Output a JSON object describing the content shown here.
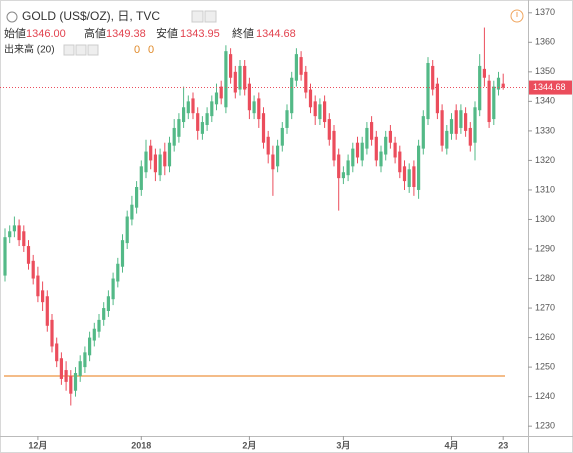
{
  "chart_data": {
    "type": "candlestick",
    "title": "GOLD (US$/OZ), 日, TVC",
    "header_labels": [
      "始値",
      "高値",
      "安値",
      "終値"
    ],
    "header_values": [
      1346,
      1349.38,
      1343.95,
      1344.68
    ],
    "header_value_labels": [
      "1346.00",
      "1349.38",
      "1343.95",
      "1344.68"
    ],
    "volume_label": "出来高 (20)",
    "volume_values": [
      0,
      0
    ],
    "categories": [
      null,
      null,
      null,
      null,
      null,
      null,
      null,
      "12月",
      null,
      null,
      null,
      null,
      null,
      null,
      null,
      null,
      null,
      null,
      null,
      null,
      null,
      null,
      null,
      null,
      null,
      null,
      null,
      null,
      null,
      "2018",
      null,
      null,
      null,
      null,
      null,
      null,
      null,
      null,
      null,
      null,
      null,
      null,
      null,
      null,
      null,
      null,
      null,
      null,
      null,
      null,
      null,
      null,
      "2月",
      null,
      null,
      null,
      null,
      null,
      null,
      null,
      null,
      null,
      null,
      null,
      null,
      null,
      null,
      null,
      null,
      null,
      null,
      null,
      "3月",
      null,
      null,
      null,
      null,
      null,
      null,
      null,
      null,
      null,
      null,
      null,
      null,
      null,
      null,
      null,
      null,
      null,
      null,
      null,
      null,
      null,
      null,
      "4月",
      null,
      null,
      null,
      null,
      null,
      null,
      null,
      null,
      null,
      null,
      "23"
    ],
    "open": [
      1281,
      1294,
      1296,
      1298,
      1296,
      1291,
      1286,
      1281,
      1276,
      1274,
      1266,
      1258,
      1253,
      1249,
      1247,
      1242,
      1247,
      1250,
      1254,
      1259,
      1262,
      1266,
      1269,
      1273,
      1279,
      1284,
      1292,
      1300,
      1304,
      1310,
      1316,
      1325,
      1322,
      1315,
      1323,
      1318,
      1325,
      1328,
      1333,
      1336,
      1341,
      1336,
      1329,
      1332,
      1335,
      1339,
      1345,
      1338,
      1356,
      1350,
      1344,
      1352,
      1346,
      1336,
      1341,
      1336,
      1328,
      1322,
      1318,
      1325,
      1331,
      1336,
      1347,
      1355,
      1350,
      1344,
      1340,
      1334,
      1340,
      1334,
      1330,
      1322,
      1314,
      1315,
      1318,
      1326,
      1320,
      1324,
      1333,
      1328,
      1318,
      1322,
      1330,
      1326,
      1323,
      1318,
      1311,
      1318,
      1310,
      1324,
      1334,
      1352,
      1346,
      1337,
      1324,
      1329,
      1337,
      1331,
      1336,
      1331,
      1326,
      1337,
      1351,
      1347,
      1334,
      1344,
      1346
    ],
    "high": [
      1297,
      1298,
      1301,
      1300,
      1298,
      1293,
      1288,
      1284,
      1279,
      1276,
      1268,
      1260,
      1255,
      1252,
      1249,
      1250,
      1254,
      1257,
      1262,
      1265,
      1268,
      1272,
      1276,
      1282,
      1287,
      1295,
      1303,
      1308,
      1313,
      1320,
      1327,
      1327,
      1324,
      1324,
      1326,
      1328,
      1334,
      1336,
      1345,
      1342,
      1343,
      1338,
      1335,
      1338,
      1342,
      1346,
      1347,
      1359,
      1358,
      1352,
      1354,
      1354,
      1348,
      1342,
      1343,
      1338,
      1330,
      1325,
      1327,
      1333,
      1339,
      1350,
      1358,
      1357,
      1352,
      1346,
      1342,
      1341,
      1342,
      1336,
      1332,
      1324,
      1318,
      1322,
      1326,
      1328,
      1328,
      1333,
      1335,
      1330,
      1325,
      1330,
      1332,
      1328,
      1325,
      1320,
      1319,
      1320,
      1327,
      1337,
      1355,
      1354,
      1348,
      1339,
      1332,
      1336,
      1339,
      1339,
      1338,
      1333,
      1340,
      1356,
      1365,
      1349,
      1347,
      1350,
      1349.38
    ],
    "low": [
      1279,
      1292,
      1294,
      1291,
      1289,
      1283,
      1278,
      1272,
      1269,
      1262,
      1255,
      1250,
      1244,
      1242,
      1237,
      1240,
      1245,
      1248,
      1252,
      1257,
      1260,
      1264,
      1267,
      1271,
      1277,
      1282,
      1290,
      1298,
      1302,
      1308,
      1314,
      1317,
      1313,
      1313,
      1315,
      1316,
      1323,
      1326,
      1331,
      1334,
      1334,
      1327,
      1327,
      1330,
      1333,
      1337,
      1339,
      1336,
      1346,
      1341,
      1342,
      1342,
      1334,
      1334,
      1331,
      1324,
      1319,
      1308,
      1316,
      1323,
      1329,
      1334,
      1345,
      1347,
      1341,
      1336,
      1332,
      1332,
      1331,
      1325,
      1318,
      1303,
      1312,
      1313,
      1316,
      1319,
      1318,
      1322,
      1325,
      1318,
      1316,
      1320,
      1324,
      1319,
      1314,
      1310,
      1309,
      1308,
      1307,
      1322,
      1332,
      1342,
      1334,
      1323,
      1322,
      1327,
      1327,
      1329,
      1328,
      1323,
      1320,
      1335,
      1345,
      1331,
      1332,
      1342,
      1343.95
    ],
    "close": [
      1294,
      1296,
      1298,
      1293,
      1291,
      1285,
      1280,
      1274,
      1272,
      1264,
      1257,
      1252,
      1246,
      1245,
      1241,
      1248,
      1252,
      1255,
      1260,
      1263,
      1266,
      1270,
      1274,
      1280,
      1285,
      1293,
      1301,
      1305,
      1311,
      1318,
      1323,
      1320,
      1316,
      1322,
      1318,
      1326,
      1331,
      1334,
      1338,
      1340,
      1336,
      1330,
      1333,
      1336,
      1340,
      1343,
      1341,
      1357,
      1348,
      1343,
      1352,
      1344,
      1337,
      1340,
      1334,
      1326,
      1322,
      1317,
      1325,
      1331,
      1337,
      1348,
      1356,
      1349,
      1343,
      1338,
      1335,
      1339,
      1333,
      1327,
      1320,
      1314,
      1316,
      1320,
      1324,
      1321,
      1326,
      1331,
      1327,
      1320,
      1323,
      1328,
      1326,
      1321,
      1316,
      1313,
      1317,
      1311,
      1325,
      1335,
      1353,
      1344,
      1336,
      1325,
      1330,
      1334,
      1329,
      1337,
      1330,
      1325,
      1338,
      1352,
      1348,
      1333,
      1345,
      1348,
      1344.68
    ],
    "up_color": "#53b987",
    "down_color": "#eb4d5c",
    "last_price": {
      "value": 1344.68,
      "label": "1344.68"
    },
    "horizontal_line": {
      "value": 1247,
      "color": "#f0a660"
    },
    "ylim": [
      1226.67,
      1374.33
    ],
    "yticks": [
      1230,
      1240,
      1250,
      1260,
      1270,
      1280,
      1290,
      1300,
      1310,
      1320,
      1330,
      1340,
      1350,
      1360,
      1370
    ],
    "grid": false
  }
}
